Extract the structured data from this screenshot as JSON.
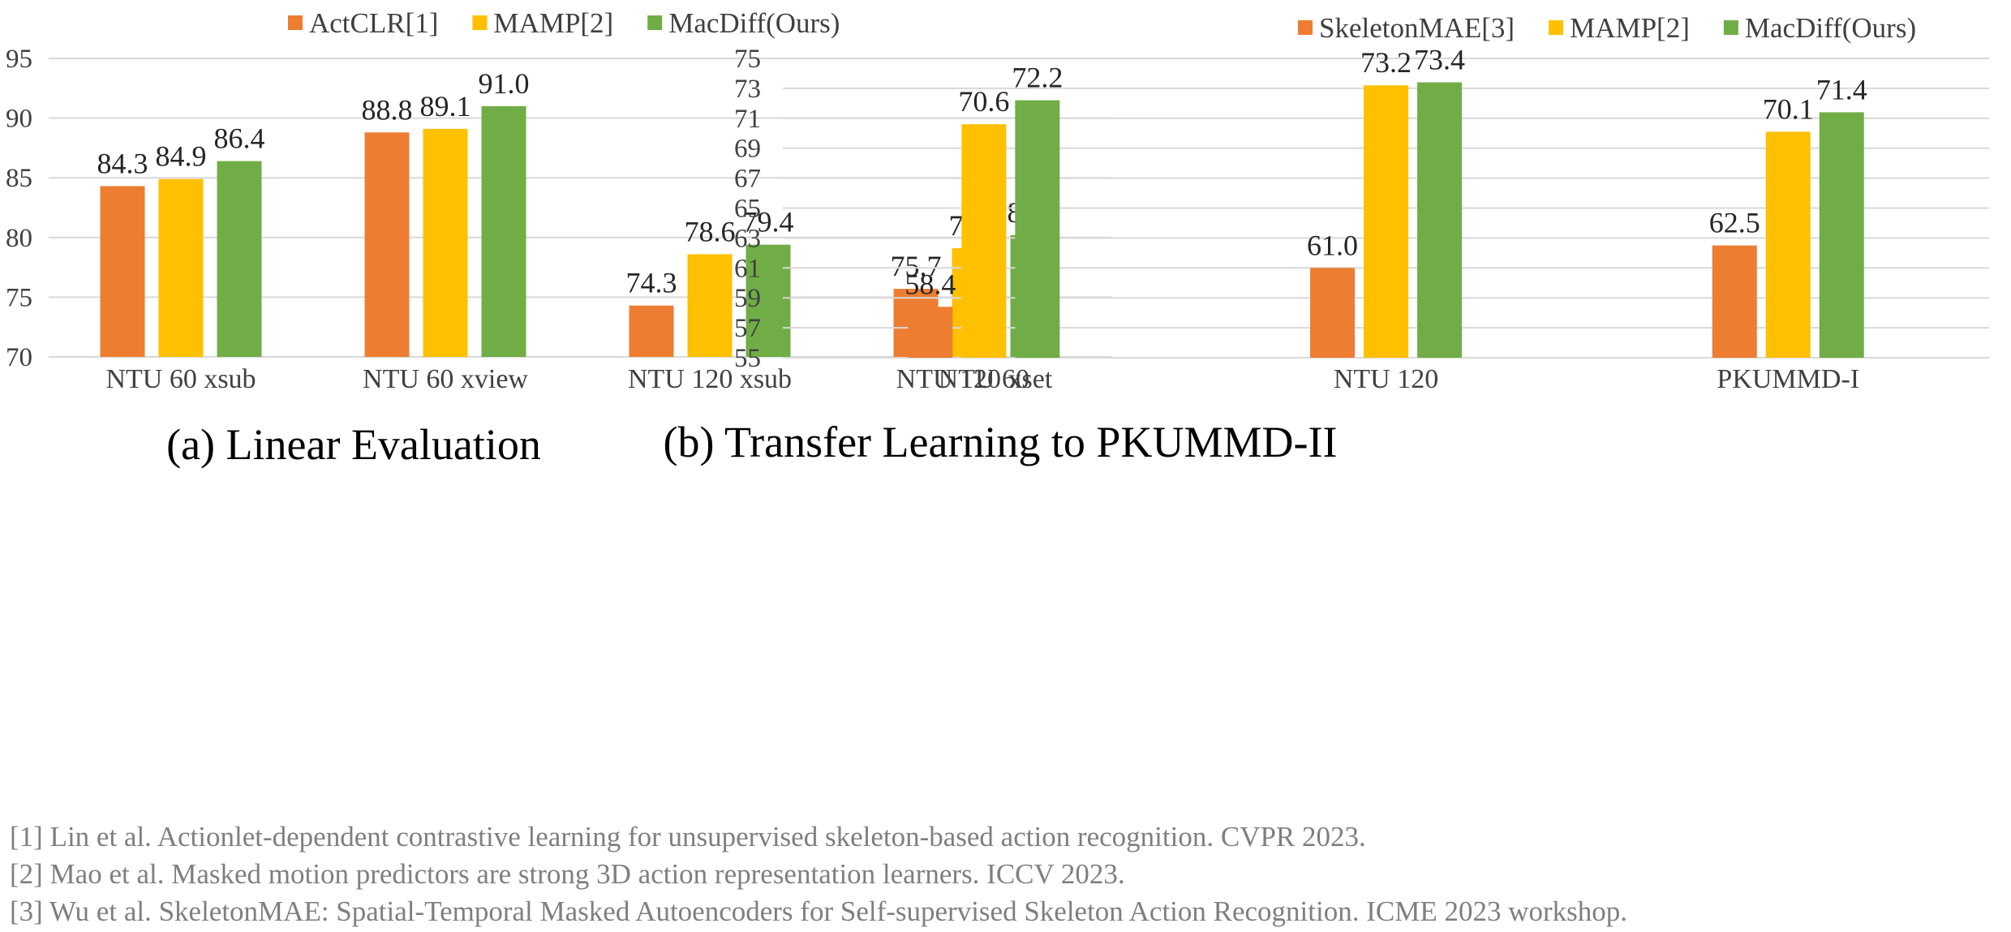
{
  "colors": {
    "orange": "#ED7D31",
    "yellow": "#FFC000",
    "green": "#70AD47"
  },
  "chart_data": [
    {
      "type": "bar",
      "caption": "(a) Linear Evaluation",
      "categories": [
        "NTU 60 xsub",
        "NTU 60 xview",
        "NTU 120 xsub",
        "NTU 120 xset"
      ],
      "series": [
        {
          "name": "ActCLR[1]",
          "values": [
            84.3,
            88.8,
            74.3,
            75.7
          ]
        },
        {
          "name": "MAMP[2]",
          "values": [
            84.9,
            89.1,
            78.6,
            79.1
          ]
        },
        {
          "name": "MacDiff(Ours)",
          "values": [
            86.4,
            91.0,
            79.4,
            80.2
          ]
        }
      ],
      "ylim": [
        70,
        95
      ],
      "yticks": [
        70,
        75,
        80,
        85,
        90,
        95
      ],
      "grid": true,
      "legend": "top"
    },
    {
      "type": "bar",
      "caption": "(b) Transfer Learning to PKUMMD-II",
      "categories": [
        "NTU 60",
        "NTU 120",
        "PKUMMD-I"
      ],
      "series": [
        {
          "name": "SkeletonMAE[3]",
          "values": [
            58.4,
            61.0,
            62.5
          ]
        },
        {
          "name": "MAMP[2]",
          "values": [
            70.6,
            73.2,
            70.1
          ]
        },
        {
          "name": "MacDiff(Ours)",
          "values": [
            72.2,
            73.4,
            71.4
          ]
        }
      ],
      "ylim": [
        55,
        75
      ],
      "yticks": [
        55,
        57,
        59,
        61,
        63,
        65,
        67,
        69,
        71,
        73,
        75
      ],
      "grid": true,
      "legend": "top"
    }
  ],
  "references": [
    "[1] Lin et al. Actionlet-dependent contrastive learning for unsupervised skeleton-based action recognition. CVPR 2023.",
    "[2] Mao et al. Masked motion predictors are strong 3D action representation learners. ICCV 2023.",
    "[3] Wu et al. SkeletonMAE: Spatial-Temporal Masked Autoencoders for Self-supervised Skeleton Action Recognition. ICME 2023 workshop."
  ]
}
